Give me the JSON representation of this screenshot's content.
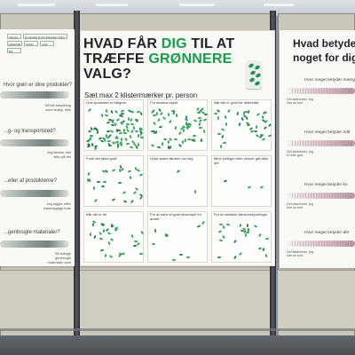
{
  "photo": {
    "left_poster": {
      "logos": [
        "Interreg",
        "Co-funded by the European Union",
        "QAVCOM",
        "UCPH",
        "UCR",
        "ES"
      ],
      "questions": [
        "Hvor grøn er dine produkter?",
        "...g- og transportsted?",
        "...eller af produkterne?",
        "...genbrugte materialer?"
      ],
      "notes": [
        "Så lidt betydning som muligt, ikke",
        "Jeg tænker slet ikke på det",
        "Jeg kigger efter bæredygtige krav",
        "Så mange genbrugte materialer som muligt"
      ]
    },
    "main_poster": {
      "title_line1_before": "HVAD FÅR ",
      "title_line1_accent": "DIG",
      "title_line1_after": " TIL AT",
      "title_line2_before": "TRÆFFE ",
      "title_line2_accent": "GRØNNERE",
      "title_line2_after": " VALG?",
      "subtitle": "Sæt max 2 klistermærker pr. person",
      "cells": [
        "Hvis produktet er billigere",
        "For klodens skyld",
        "Når det er godt for helbredet",
        "Fordi det føles godt",
        "Hvad andre tænker om mig",
        "Mine kolleger eller venner gør ikke det",
        "Når det er let",
        "For at være et godt eksempel for andre",
        "For at mindske klima-bekymringer"
      ]
    },
    "right_poster": {
      "title_line1": "Hvad betyder",
      "title_line2": "noget for dig",
      "sections": [
        {
          "question": "Hvor meget betyder mængden",
          "note": "Det skæmmer, jeg kan se bort"
        },
        {
          "question": "Hvor meget betyder mål",
          "note": "Det skæmmer, jeg er ikke god"
        },
        {
          "question": "Hvor meget betyder ko",
          "note": "Det skæmmer, jeg kan se bort"
        },
        {
          "question": "Hvor meget betyder det",
          "note": "Det skæmmer, jeg kan se bort"
        }
      ]
    }
  }
}
